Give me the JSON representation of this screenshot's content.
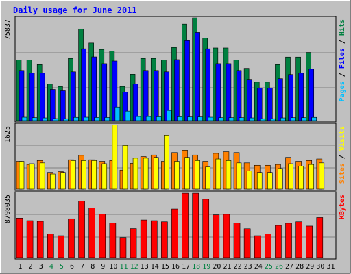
{
  "chart_data": {
    "type": "bar",
    "title": "Daily usage for June 2011",
    "categories": [
      "1",
      "2",
      "3",
      "4",
      "5",
      "6",
      "7",
      "8",
      "9",
      "10",
      "11",
      "12",
      "13",
      "14",
      "15",
      "16",
      "17",
      "18",
      "19",
      "20",
      "21",
      "22",
      "23",
      "24",
      "25",
      "26",
      "27",
      "28",
      "29",
      "30",
      "31"
    ],
    "weekend_days": [
      4,
      5,
      11,
      12,
      18,
      19,
      25,
      26
    ],
    "panels": [
      {
        "ymax_label": "75837",
        "ymax": 75837,
        "axis_labels": [
          {
            "text": "Pages",
            "color": "#00c0ff"
          },
          {
            "text": " / ",
            "color": "#000000"
          },
          {
            "text": "Files",
            "color": "#0000ff"
          },
          {
            "text": " / ",
            "color": "#000000"
          },
          {
            "text": "Hits",
            "color": "#008040"
          }
        ],
        "series": [
          {
            "name": "Hits",
            "color": "#008040",
            "values": [
              44800,
              44800,
              41300,
              26900,
              25200,
              45900,
              67600,
              57200,
              52500,
              51300,
              25200,
              34200,
              45900,
              45900,
              44800,
              54000,
              71200,
              75800,
              60900,
              53600,
              53600,
              44800,
              38600,
              28400,
              28400,
              41300,
              46900,
              46900,
              50300,
              0,
              0
            ]
          },
          {
            "name": "Files",
            "color": "#0000ff",
            "values": [
              37000,
              35000,
              35000,
              23000,
              22000,
              36000,
              53000,
              47000,
              42000,
              44000,
              21000,
              27000,
              37000,
              37000,
              36000,
              45000,
              59000,
              65000,
              53000,
              42000,
              42000,
              37000,
              30000,
              24000,
              24000,
              31000,
              34000,
              35000,
              38000,
              0,
              0
            ]
          },
          {
            "name": "Pages",
            "color": "#00c0ff",
            "values": [
              2500,
              2200,
              2000,
              1500,
              1400,
              2400,
              2500,
              2300,
              2300,
              10000,
              7000,
              3000,
              3000,
              2800,
              7500,
              2800,
              2700,
              2700,
              2500,
              2200,
              2200,
              2200,
              2000,
              1400,
              1400,
              2000,
              2200,
              2200,
              2400,
              0,
              0
            ]
          }
        ]
      },
      {
        "ymax_label": "1625",
        "ymax": 1625,
        "axis_labels": [
          {
            "text": "Sites",
            "color": "#ff8000"
          },
          {
            "text": " / ",
            "color": "#000000"
          },
          {
            "text": "Visits",
            "color": "#ffff00"
          }
        ],
        "series": [
          {
            "name": "Sites",
            "color": "#ff8000",
            "values": [
              700,
              620,
              720,
              420,
              440,
              740,
              850,
              740,
              700,
              720,
              480,
              650,
              820,
              860,
              700,
              920,
              980,
              860,
              700,
              900,
              940,
              920,
              660,
              600,
              600,
              620,
              800,
              700,
              720,
              760,
              0
            ]
          },
          {
            "name": "Visits",
            "color": "#ffff00",
            "values": [
              700,
              640,
              660,
              380,
              420,
              720,
              720,
              720,
              640,
              1620,
              1100,
              780,
              780,
              800,
              1360,
              700,
              800,
              720,
              560,
              760,
              720,
              660,
              460,
              420,
              420,
              520,
              640,
              580,
              620,
              660,
              0
            ]
          }
        ]
      },
      {
        "ymax_label": "8798035",
        "ymax": 8798035,
        "axis_labels": [
          {
            "text": "KBytes",
            "color": "#ff0000"
          }
        ],
        "series": [
          {
            "name": "KBytes",
            "color": "#ff0000",
            "values": [
              5400000,
              5050000,
              4960000,
              3240000,
              2990000,
              5310000,
              7720000,
              6790000,
              5930000,
              4710000,
              2740000,
              3970000,
              5140000,
              5050000,
              4890000,
              6640000,
              8790000,
              8790000,
              7970000,
              5830000,
              5910000,
              4710000,
              3950000,
              2990000,
              3240000,
              4400000,
              4690000,
              4890000,
              4310000,
              5480000,
              0
            ]
          }
        ]
      }
    ]
  }
}
